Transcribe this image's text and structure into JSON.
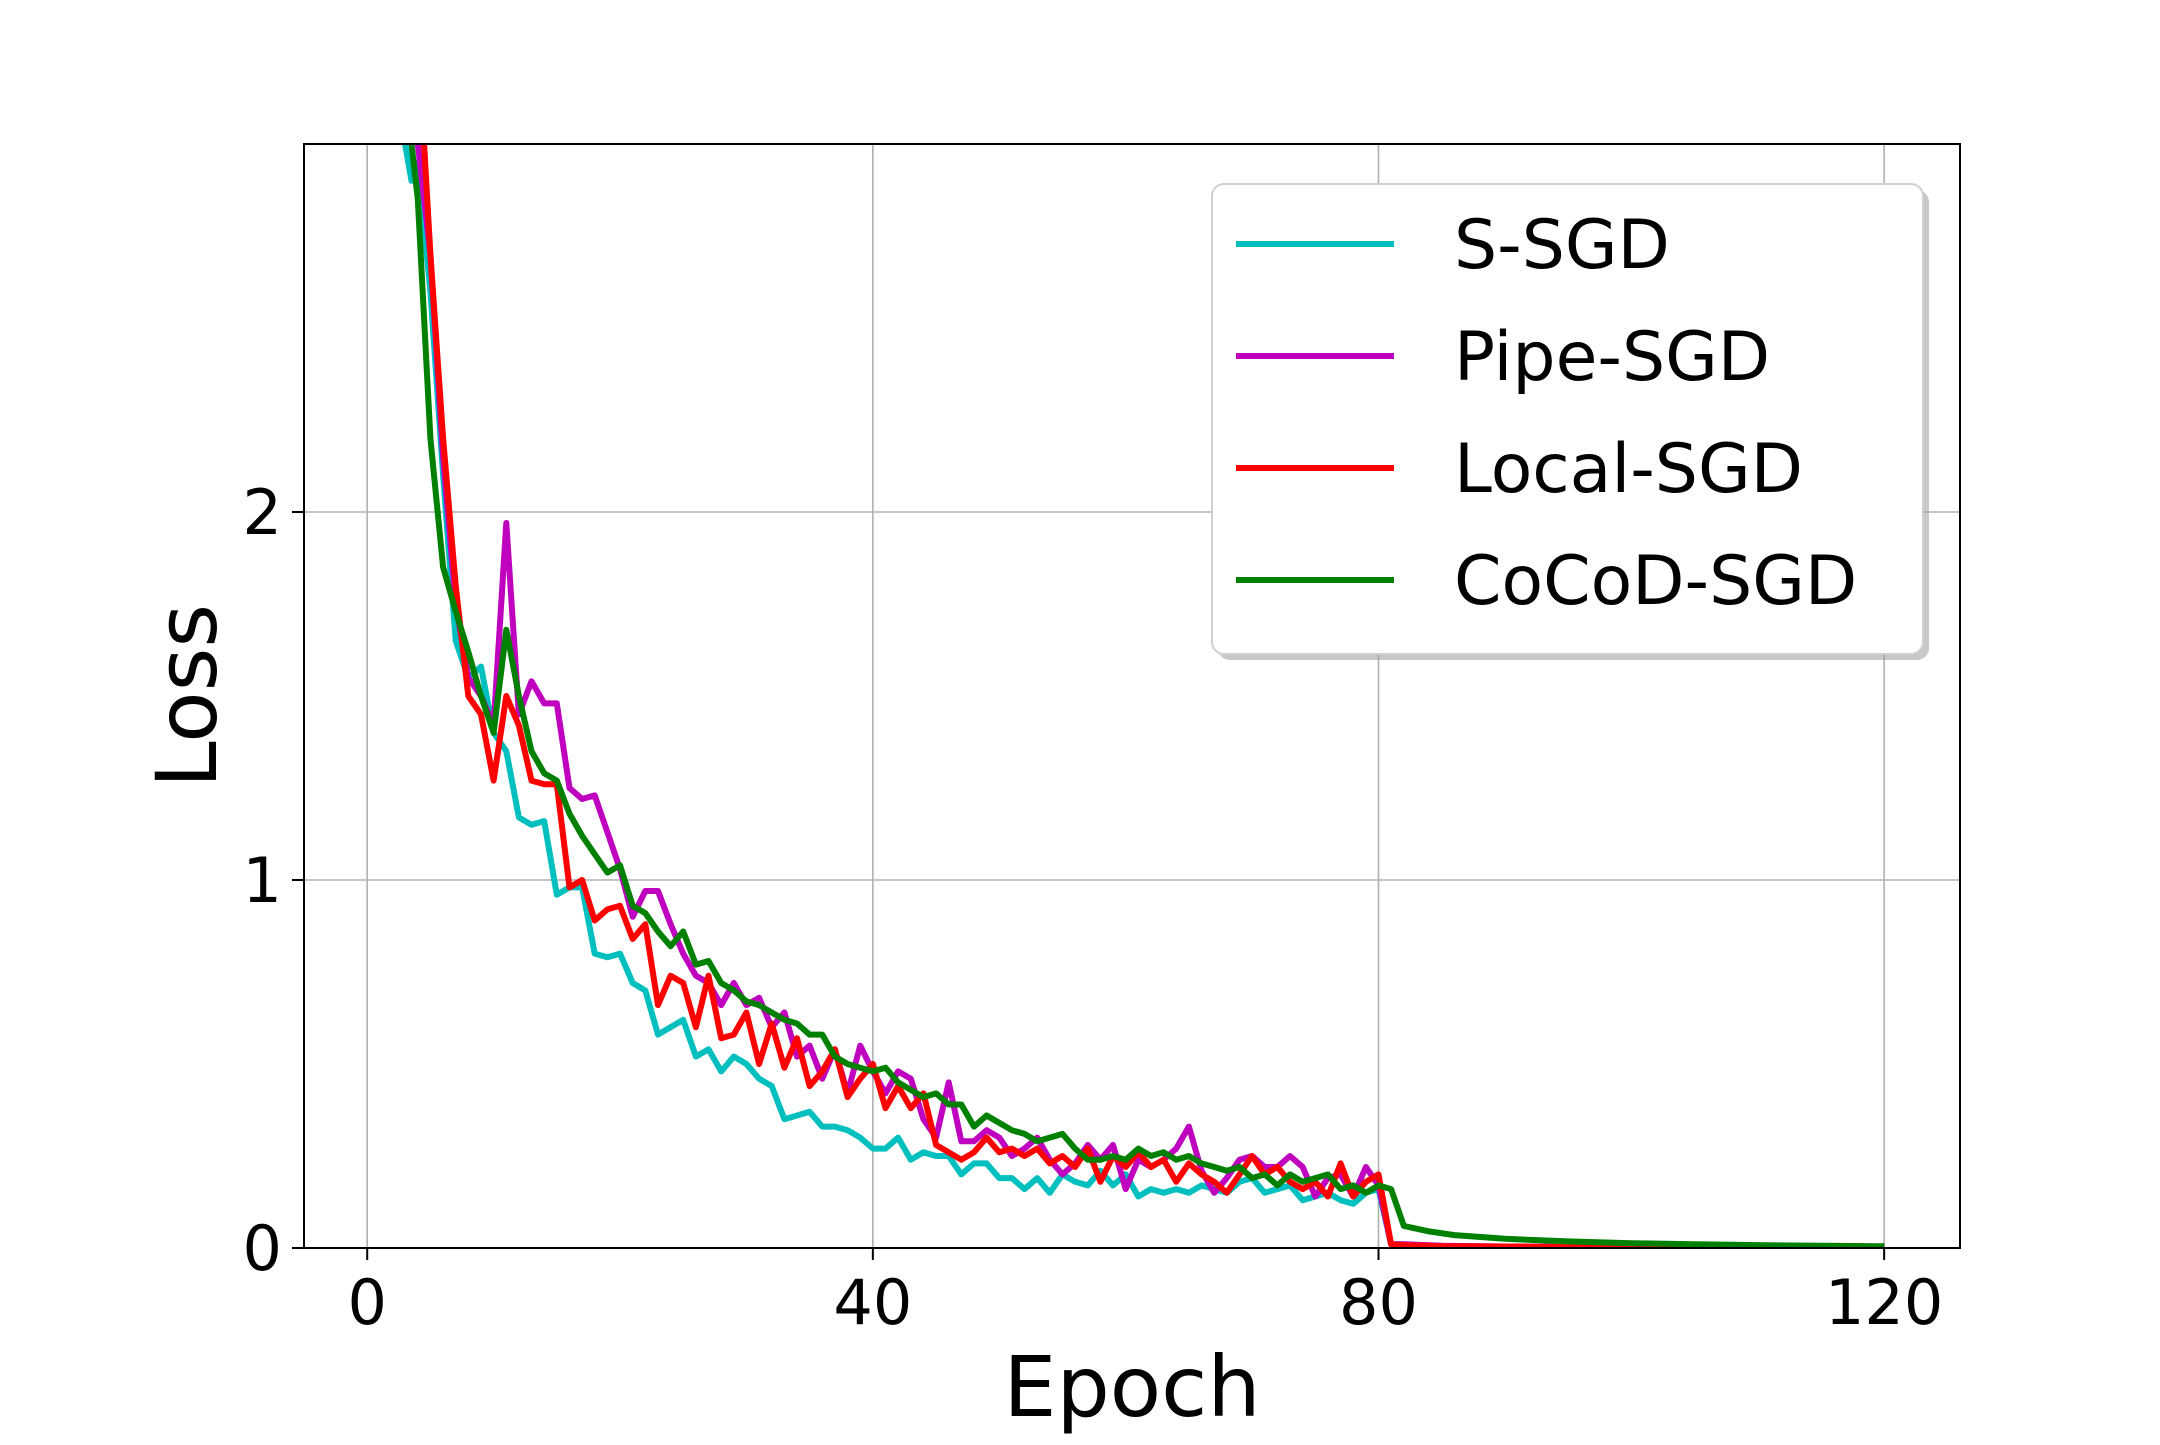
{
  "chart_data": {
    "type": "line",
    "title": "",
    "xlabel": "Epoch",
    "ylabel": "Loss",
    "xlim": [
      -5,
      126
    ],
    "ylim": [
      0,
      3.0
    ],
    "xticks": [
      0,
      40,
      80,
      120
    ],
    "yticks": [
      0,
      1,
      2
    ],
    "grid": true,
    "legend_position": "top-right",
    "series": [
      {
        "name": "S-SGD",
        "color": "#00bfbf",
        "x": [
          3,
          3.5,
          4,
          5,
          6,
          7,
          8,
          9,
          10,
          11,
          12,
          13,
          14,
          15,
          16,
          17,
          18,
          19,
          20,
          21,
          22,
          23,
          24,
          25,
          26,
          27,
          28,
          29,
          30,
          31,
          32,
          33,
          34,
          35,
          36,
          37,
          38,
          39,
          40,
          41,
          42,
          43,
          44,
          45,
          46,
          47,
          48,
          49,
          50,
          51,
          52,
          53,
          54,
          55,
          56,
          57,
          58,
          59,
          60,
          61,
          62,
          63,
          64,
          65,
          66,
          67,
          68,
          69,
          70,
          71,
          72,
          73,
          74,
          75,
          76,
          77,
          78,
          79,
          80,
          81,
          82,
          85,
          90,
          95,
          100,
          105,
          110,
          115,
          120
        ],
        "y": [
          3.0,
          2.9,
          2.95,
          2.6,
          2.1,
          1.65,
          1.55,
          1.58,
          1.4,
          1.35,
          1.17,
          1.15,
          1.16,
          0.96,
          0.98,
          0.98,
          0.8,
          0.79,
          0.8,
          0.72,
          0.7,
          0.58,
          0.6,
          0.62,
          0.52,
          0.54,
          0.48,
          0.52,
          0.5,
          0.46,
          0.44,
          0.35,
          0.36,
          0.37,
          0.33,
          0.33,
          0.32,
          0.3,
          0.27,
          0.27,
          0.3,
          0.24,
          0.26,
          0.25,
          0.25,
          0.2,
          0.23,
          0.23,
          0.19,
          0.19,
          0.16,
          0.19,
          0.15,
          0.2,
          0.18,
          0.17,
          0.21,
          0.17,
          0.2,
          0.14,
          0.16,
          0.15,
          0.16,
          0.15,
          0.17,
          0.16,
          0.15,
          0.18,
          0.19,
          0.15,
          0.16,
          0.17,
          0.13,
          0.14,
          0.15,
          0.13,
          0.12,
          0.15,
          0.16,
          0.01,
          0.01,
          0.005,
          0.004,
          0.003,
          0.003,
          0.002,
          0.002,
          0.002,
          0.002
        ]
      },
      {
        "name": "Pipe-SGD",
        "color": "#bf00bf",
        "x": [
          4,
          5,
          6,
          7,
          8,
          9,
          10,
          11,
          12,
          13,
          14,
          15,
          16,
          17,
          18,
          19,
          20,
          21,
          22,
          23,
          24,
          25,
          26,
          27,
          28,
          29,
          30,
          31,
          32,
          33,
          34,
          35,
          36,
          37,
          38,
          39,
          40,
          41,
          42,
          43,
          44,
          45,
          46,
          47,
          48,
          49,
          50,
          51,
          52,
          53,
          54,
          55,
          56,
          57,
          58,
          59,
          60,
          61,
          62,
          63,
          64,
          65,
          66,
          67,
          68,
          69,
          70,
          71,
          72,
          73,
          74,
          75,
          76,
          77,
          78,
          79,
          80,
          81,
          82,
          85,
          90,
          95,
          100,
          105,
          110,
          115,
          120
        ],
        "y": [
          3.0,
          2.7,
          2.15,
          1.75,
          1.55,
          1.5,
          1.42,
          1.97,
          1.45,
          1.54,
          1.48,
          1.48,
          1.25,
          1.22,
          1.23,
          1.13,
          1.03,
          0.9,
          0.97,
          0.97,
          0.88,
          0.8,
          0.74,
          0.72,
          0.66,
          0.72,
          0.66,
          0.68,
          0.6,
          0.64,
          0.52,
          0.55,
          0.46,
          0.54,
          0.42,
          0.55,
          0.48,
          0.42,
          0.48,
          0.46,
          0.35,
          0.3,
          0.45,
          0.29,
          0.29,
          0.32,
          0.3,
          0.25,
          0.27,
          0.3,
          0.24,
          0.2,
          0.23,
          0.28,
          0.24,
          0.28,
          0.16,
          0.24,
          0.22,
          0.24,
          0.27,
          0.33,
          0.21,
          0.15,
          0.19,
          0.24,
          0.25,
          0.22,
          0.22,
          0.25,
          0.22,
          0.14,
          0.19,
          0.2,
          0.14,
          0.22,
          0.17,
          0.01,
          0.01,
          0.006,
          0.004,
          0.003,
          0.003,
          0.002,
          0.002,
          0.002,
          0.002
        ]
      },
      {
        "name": "Local-SGD",
        "color": "#ff0000",
        "x": [
          4.5,
          5,
          6,
          7,
          8,
          9,
          10,
          11,
          12,
          13,
          14,
          15,
          16,
          17,
          18,
          19,
          20,
          21,
          22,
          23,
          24,
          25,
          26,
          27,
          28,
          29,
          30,
          31,
          32,
          33,
          34,
          35,
          36,
          37,
          38,
          39,
          40,
          41,
          42,
          43,
          44,
          45,
          46,
          47,
          48,
          49,
          50,
          51,
          52,
          53,
          54,
          55,
          56,
          57,
          58,
          59,
          60,
          61,
          62,
          63,
          64,
          65,
          66,
          67,
          68,
          69,
          70,
          71,
          72,
          73,
          74,
          75,
          76,
          77,
          78,
          79,
          80,
          81,
          82,
          85,
          90,
          95,
          100,
          105,
          110,
          115,
          120
        ],
        "y": [
          3.0,
          2.7,
          2.2,
          1.8,
          1.5,
          1.45,
          1.27,
          1.5,
          1.42,
          1.27,
          1.26,
          1.26,
          0.98,
          1.0,
          0.89,
          0.92,
          0.93,
          0.84,
          0.88,
          0.66,
          0.74,
          0.72,
          0.6,
          0.74,
          0.57,
          0.58,
          0.64,
          0.5,
          0.61,
          0.49,
          0.57,
          0.44,
          0.48,
          0.54,
          0.41,
          0.46,
          0.5,
          0.38,
          0.44,
          0.38,
          0.42,
          0.28,
          0.26,
          0.24,
          0.26,
          0.3,
          0.26,
          0.27,
          0.25,
          0.27,
          0.23,
          0.25,
          0.22,
          0.27,
          0.18,
          0.25,
          0.22,
          0.26,
          0.22,
          0.24,
          0.18,
          0.23,
          0.2,
          0.18,
          0.15,
          0.2,
          0.25,
          0.2,
          0.22,
          0.18,
          0.16,
          0.18,
          0.14,
          0.23,
          0.14,
          0.18,
          0.2,
          0.01,
          0.008,
          0.005,
          0.004,
          0.003,
          0.003,
          0.002,
          0.002,
          0.002,
          0.002
        ]
      },
      {
        "name": "CoCoD-SGD",
        "color": "#008000",
        "x": [
          3.5,
          4,
          5,
          6,
          7,
          8,
          9,
          10,
          11,
          12,
          13,
          14,
          15,
          16,
          17,
          18,
          19,
          20,
          21,
          22,
          23,
          24,
          25,
          26,
          27,
          28,
          29,
          30,
          31,
          32,
          33,
          34,
          35,
          36,
          37,
          38,
          39,
          40,
          41,
          42,
          43,
          44,
          45,
          46,
          47,
          48,
          49,
          50,
          51,
          52,
          53,
          54,
          55,
          56,
          57,
          58,
          59,
          60,
          61,
          62,
          63,
          64,
          65,
          66,
          67,
          68,
          69,
          70,
          71,
          72,
          73,
          74,
          75,
          76,
          77,
          78,
          79,
          80,
          81,
          82,
          84,
          86,
          90,
          95,
          100,
          105,
          110,
          115,
          120
        ],
        "y": [
          3.0,
          2.85,
          2.2,
          1.85,
          1.73,
          1.62,
          1.5,
          1.4,
          1.68,
          1.5,
          1.35,
          1.29,
          1.27,
          1.18,
          1.12,
          1.07,
          1.02,
          1.04,
          0.93,
          0.91,
          0.86,
          0.82,
          0.86,
          0.77,
          0.78,
          0.72,
          0.7,
          0.67,
          0.66,
          0.64,
          0.62,
          0.61,
          0.58,
          0.58,
          0.52,
          0.5,
          0.49,
          0.48,
          0.49,
          0.45,
          0.43,
          0.41,
          0.42,
          0.39,
          0.39,
          0.33,
          0.36,
          0.34,
          0.32,
          0.31,
          0.29,
          0.3,
          0.31,
          0.27,
          0.24,
          0.24,
          0.25,
          0.24,
          0.27,
          0.25,
          0.26,
          0.24,
          0.25,
          0.23,
          0.22,
          0.21,
          0.22,
          0.19,
          0.2,
          0.17,
          0.2,
          0.18,
          0.19,
          0.2,
          0.16,
          0.17,
          0.15,
          0.17,
          0.16,
          0.06,
          0.045,
          0.035,
          0.025,
          0.018,
          0.013,
          0.01,
          0.008,
          0.006,
          0.005
        ]
      }
    ]
  }
}
